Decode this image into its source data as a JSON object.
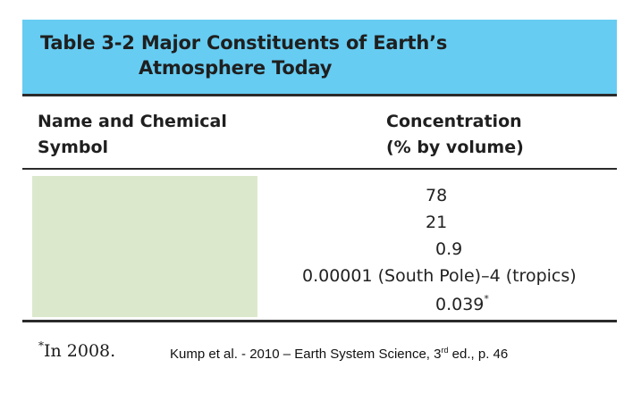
{
  "table": {
    "title_line1": "Table 3-2  Major Constituents of Earth’s",
    "title_line2": "Atmosphere Today",
    "columns": [
      {
        "line1": "Name and Chemical",
        "line2": "Symbol"
      },
      {
        "line1": "Concentration",
        "line2": "(% by volume)"
      }
    ],
    "concentration_values": [
      {
        "text": "78",
        "mark": ""
      },
      {
        "text": "21",
        "mark": ""
      },
      {
        "text": "0.9",
        "mark": ""
      },
      {
        "text": "0.00001 (South Pole)–4 (tropics)",
        "mark": ""
      },
      {
        "text": "0.039",
        "mark": "*"
      }
    ],
    "name_column_redacted": true
  },
  "footnote": {
    "mark": "*",
    "text": "In 2008."
  },
  "citation": {
    "before": "Kump et al. - 2010 – Earth System Science, 3",
    "superscript": "rd",
    "after": " ed., p. 46"
  },
  "colors": {
    "title_banner": "#66ccf2",
    "redaction_box": "#dce8cc",
    "rules": "#2b2b2b"
  }
}
